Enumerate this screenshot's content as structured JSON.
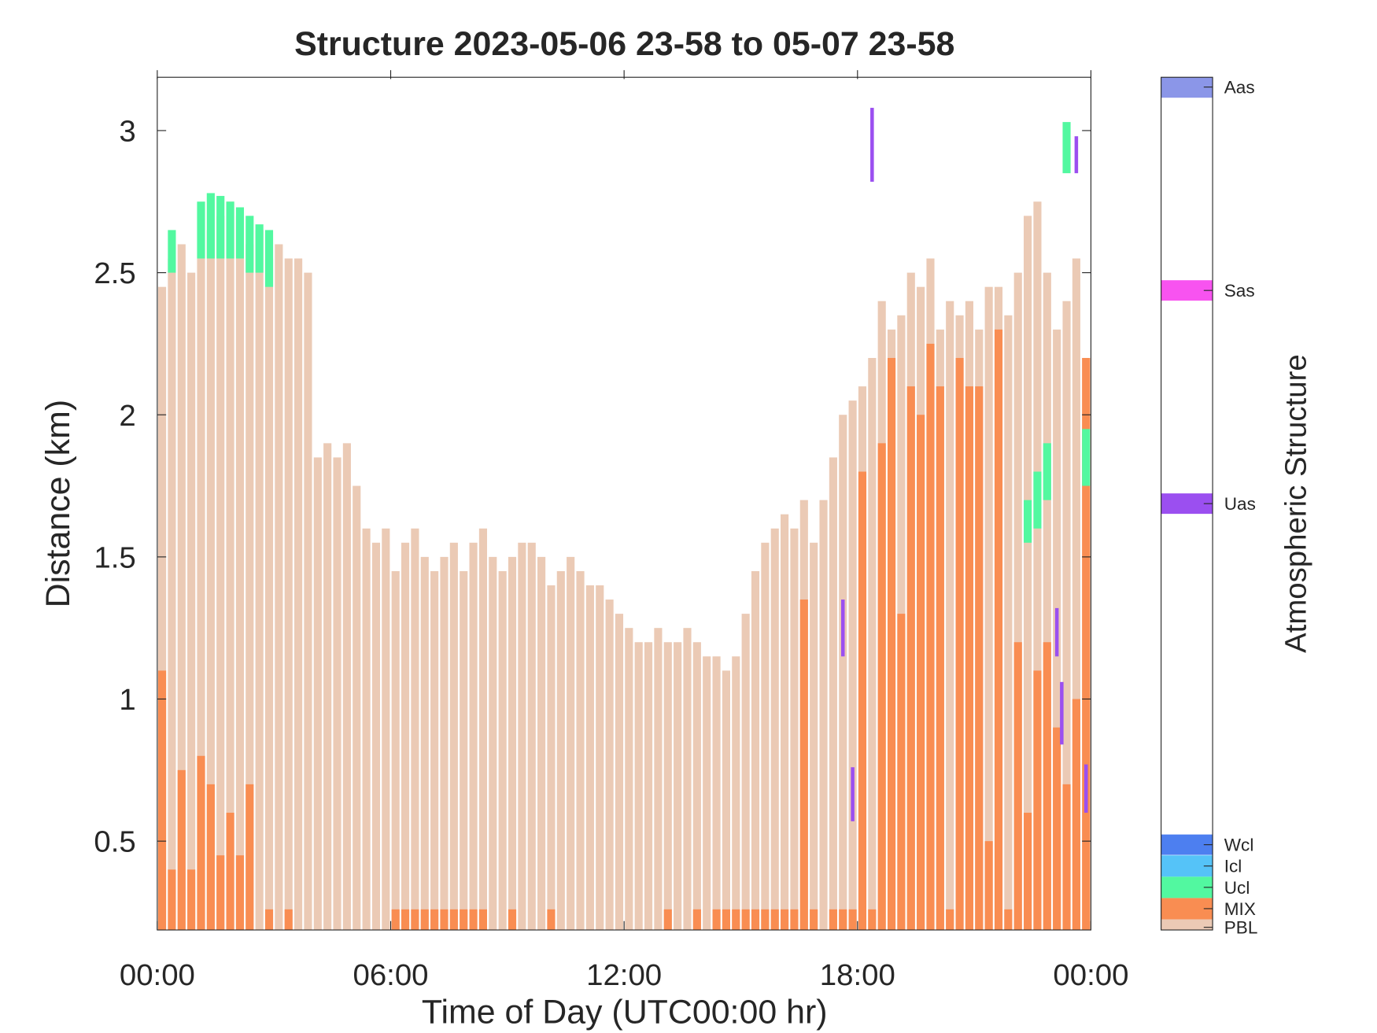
{
  "chart_data": {
    "type": "bar",
    "title": "Structure 2023-05-06 23-58 to 05-07 23-58",
    "x_label": "Time of Day (UTC00:00 hr)",
    "y_label": "Distance (km)",
    "colorbar_label": "Atmospheric Structure",
    "xlim": [
      0,
      24
    ],
    "xticks": [
      {
        "value": 0,
        "label": "00:00"
      },
      {
        "value": 6,
        "label": "06:00"
      },
      {
        "value": 12,
        "label": "12:00"
      },
      {
        "value": 18,
        "label": "18:00"
      },
      {
        "value": 24,
        "label": "00:00"
      }
    ],
    "ylim": [
      0.1875,
      3.1875
    ],
    "yticks": [
      0.5,
      1,
      1.5,
      2,
      2.5,
      3
    ],
    "x": [
      0.125,
      0.375,
      0.625,
      0.875,
      1.125,
      1.375,
      1.625,
      1.875,
      2.125,
      2.375,
      2.625,
      2.875,
      3.125,
      3.375,
      3.625,
      3.875,
      4.125,
      4.375,
      4.625,
      4.875,
      5.125,
      5.375,
      5.625,
      5.875,
      6.125,
      6.375,
      6.625,
      6.875,
      7.125,
      7.375,
      7.625,
      7.875,
      8.125,
      8.375,
      8.625,
      8.875,
      9.125,
      9.375,
      9.625,
      9.875,
      10.125,
      10.375,
      10.625,
      10.875,
      11.125,
      11.375,
      11.625,
      11.875,
      12.125,
      12.375,
      12.625,
      12.875,
      13.125,
      13.375,
      13.625,
      13.875,
      14.125,
      14.375,
      14.625,
      14.875,
      15.125,
      15.375,
      15.625,
      15.875,
      16.125,
      16.375,
      16.625,
      16.875,
      17.125,
      17.375,
      17.625,
      17.875,
      18.125,
      18.375,
      18.625,
      18.875,
      19.125,
      19.375,
      19.625,
      19.875,
      20.125,
      20.375,
      20.625,
      20.875,
      21.125,
      21.375,
      21.625,
      21.875,
      22.125,
      22.375,
      22.625,
      22.875,
      23.125,
      23.375,
      23.625,
      23.875
    ],
    "series": [
      {
        "name": "PBL",
        "color": "#ebcab5",
        "values": [
          2.45,
          2.55,
          2.6,
          2.5,
          2.55,
          2.65,
          2.7,
          2.75,
          2.7,
          2.6,
          2.65,
          2.55,
          2.6,
          2.55,
          2.55,
          2.5,
          1.85,
          1.9,
          1.85,
          1.9,
          1.75,
          1.6,
          1.55,
          1.6,
          1.45,
          1.55,
          1.6,
          1.5,
          1.45,
          1.5,
          1.55,
          1.45,
          1.55,
          1.6,
          1.5,
          1.45,
          1.5,
          1.55,
          1.55,
          1.5,
          1.4,
          1.45,
          1.5,
          1.45,
          1.4,
          1.4,
          1.35,
          1.3,
          1.25,
          1.2,
          1.2,
          1.25,
          1.2,
          1.2,
          1.25,
          1.2,
          1.15,
          1.15,
          1.1,
          1.15,
          1.3,
          1.45,
          1.55,
          1.6,
          1.65,
          1.6,
          1.7,
          1.55,
          1.7,
          1.85,
          2.0,
          2.05,
          2.1,
          2.2,
          2.4,
          2.3,
          2.35,
          2.5,
          2.45,
          2.55,
          2.3,
          2.4,
          2.35,
          2.4,
          2.3,
          2.45,
          2.45,
          2.35,
          2.5,
          2.7,
          2.75,
          2.5,
          2.3,
          2.4,
          2.55,
          2.2
        ]
      },
      {
        "name": "MIX",
        "color": "#f98d52",
        "values": [
          1.1,
          0.4,
          0.75,
          0.4,
          0.8,
          0.7,
          0.45,
          0.6,
          0.45,
          0.7,
          null,
          0.26,
          null,
          0.26,
          null,
          null,
          null,
          null,
          null,
          null,
          null,
          null,
          null,
          null,
          0.26,
          0.26,
          0.26,
          0.26,
          0.26,
          0.26,
          0.26,
          0.26,
          0.26,
          0.26,
          null,
          null,
          0.26,
          null,
          null,
          null,
          0.26,
          null,
          null,
          null,
          null,
          null,
          null,
          null,
          null,
          null,
          null,
          null,
          0.26,
          null,
          null,
          0.26,
          null,
          0.26,
          0.26,
          0.26,
          0.26,
          0.26,
          0.26,
          0.26,
          0.26,
          0.26,
          1.35,
          0.26,
          null,
          0.26,
          0.26,
          0.26,
          1.8,
          0.26,
          1.9,
          2.2,
          1.3,
          2.1,
          2.0,
          2.25,
          2.1,
          0.26,
          2.2,
          2.1,
          2.1,
          0.5,
          2.3,
          0.26,
          1.2,
          0.6,
          1.1,
          1.2,
          0.9,
          0.7,
          1.0,
          2.2
        ]
      }
    ],
    "segments": [
      {
        "name": "Ucl",
        "color": "#52f8a0",
        "x": [
          0.375,
          1.125,
          1.375,
          1.625,
          1.875,
          2.125,
          2.375,
          2.625,
          2.875,
          22.375,
          22.625,
          22.875,
          23.375,
          23.875
        ],
        "low": [
          2.5,
          2.55,
          2.55,
          2.55,
          2.55,
          2.55,
          2.5,
          2.5,
          2.45,
          1.55,
          1.6,
          1.7,
          2.85,
          1.75
        ],
        "high": [
          2.65,
          2.75,
          2.78,
          2.77,
          2.75,
          2.73,
          2.7,
          2.67,
          2.65,
          1.7,
          1.8,
          1.9,
          3.03,
          1.95
        ]
      },
      {
        "name": "Uas",
        "color": "#9b4ff0",
        "x": [
          17.625,
          17.875,
          18.375,
          23.125,
          23.25,
          23.625,
          23.875
        ],
        "low": [
          1.15,
          0.57,
          2.82,
          1.15,
          0.84,
          2.85,
          0.6
        ],
        "high": [
          1.35,
          0.76,
          3.08,
          1.32,
          1.06,
          2.98,
          0.77
        ]
      }
    ],
    "colorbar": [
      {
        "name": "PBL",
        "color": "#ebcab5"
      },
      {
        "name": "MIX",
        "color": "#f98d52"
      },
      {
        "name": "Ucl",
        "color": "#52f8a0"
      },
      {
        "name": "Icl",
        "color": "#55c3f8"
      },
      {
        "name": "Wcl",
        "color": "#4d7ff0"
      },
      {
        "name": "Uas",
        "color": "#9b4ff0"
      },
      {
        "name": "Sas",
        "color": "#f853f0"
      },
      {
        "name": "Aas",
        "color": "#8b96e8"
      }
    ]
  }
}
